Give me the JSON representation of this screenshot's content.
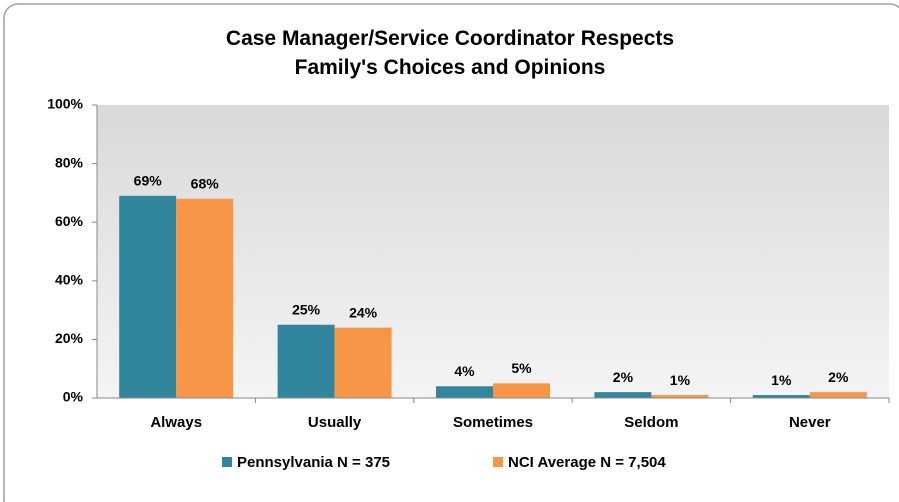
{
  "chart_data": {
    "type": "bar",
    "title": "Case Manager/Service Coordinator Respects Family's Choices and Opinions",
    "categories": [
      "Always",
      "Usually",
      "Sometimes",
      "Seldom",
      "Never"
    ],
    "series": [
      {
        "name": "Pennsylvania N = 375",
        "color": "#31859c",
        "values": [
          69,
          25,
          4,
          2,
          1
        ],
        "value_labels": [
          "69%",
          "25%",
          "4%",
          "2%",
          "1%"
        ]
      },
      {
        "name": "NCI Average N = 7,504",
        "color": "#f79646",
        "values": [
          68,
          24,
          5,
          1,
          2
        ],
        "value_labels": [
          "68%",
          "24%",
          "5%",
          "1%",
          "2%"
        ]
      }
    ],
    "ylim": [
      0,
      100
    ],
    "yticks": [
      {
        "value": 0,
        "label": "0%"
      },
      {
        "value": 20,
        "label": "20%"
      },
      {
        "value": 40,
        "label": "40%"
      },
      {
        "value": 60,
        "label": "60%"
      },
      {
        "value": 80,
        "label": "80%"
      },
      {
        "value": 100,
        "label": "100%"
      }
    ],
    "grid": false,
    "legend": "bottom"
  }
}
